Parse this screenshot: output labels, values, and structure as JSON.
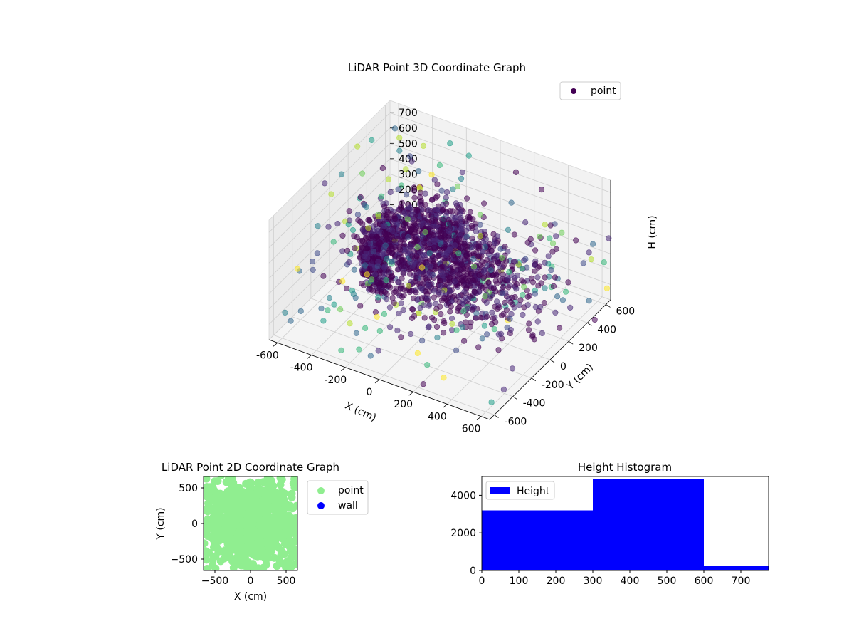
{
  "colors": {
    "point3d": "#440154",
    "point2d": "#90ee90",
    "wall": "#0000ff",
    "hist_bar": "#0000ff",
    "pane": "#f2f2f2",
    "grid": "#d0d0d0",
    "viridis": [
      "#440154",
      "#482878",
      "#3e4a89",
      "#31688e",
      "#26828e",
      "#1f9e89",
      "#35b779",
      "#6ece58",
      "#b5de2b",
      "#fde725"
    ]
  },
  "chart_data": [
    {
      "type": "scatter",
      "projection": "3d",
      "title": "LiDAR Point 3D Coordinate Graph",
      "xlabel": "X (cm)",
      "ylabel": "Y (cm)",
      "zlabel": "H (cm)",
      "xlim": [
        -650,
        650
      ],
      "ylim": [
        -650,
        650
      ],
      "zlim": [
        0,
        780
      ],
      "x_ticks": [
        "-600",
        "-400",
        "-200",
        "0",
        "200",
        "400",
        "600"
      ],
      "y_ticks": [
        "-600",
        "-400",
        "-200",
        "0",
        "200",
        "400",
        "600"
      ],
      "z_ticks": [
        "0",
        "100",
        "200",
        "300",
        "400",
        "500",
        "600",
        "700"
      ],
      "grid": true,
      "legend": "top-right",
      "colormap": "viridis",
      "series": [
        {
          "name": "point",
          "clusters": [
            {
              "shape": "arc",
              "center": [
                -150,
                200,
                200
              ],
              "radius": 330,
              "angle_range_deg": [
                90,
                250
              ],
              "h_range": [
                80,
                330
              ],
              "count": 700
            },
            {
              "shape": "blob",
              "center": [
                150,
                -100,
                430
              ],
              "spread": [
                220,
                180,
                100
              ],
              "count": 700
            },
            {
              "shape": "blob",
              "center": [
                -100,
                100,
                300
              ],
              "spread": [
                150,
                150,
                150
              ],
              "count": 300
            },
            {
              "shape": "scatter",
              "x_range": [
                -650,
                650
              ],
              "y_range": [
                -650,
                650
              ],
              "h_range": [
                0,
                780
              ],
              "count": 260
            }
          ]
        }
      ]
    },
    {
      "type": "scatter",
      "title": "LiDAR Point 2D Coordinate Graph",
      "xlabel": "X (cm)",
      "ylabel": "Y (cm)",
      "xlim": [
        -660,
        660
      ],
      "ylim": [
        -660,
        660
      ],
      "x_ticks": [
        "-500",
        "0",
        "500"
      ],
      "y_ticks": [
        "-500",
        "0",
        "500"
      ],
      "legend": "outside-right",
      "series": [
        {
          "name": "point",
          "distribution": "dense-center",
          "x_range": [
            -650,
            650
          ],
          "y_range": [
            -650,
            650
          ],
          "count": 900
        },
        {
          "name": "wall",
          "count": 0
        }
      ]
    },
    {
      "type": "bar",
      "title": "Height Histogram",
      "xlim": [
        0,
        775
      ],
      "ylim": [
        0,
        5000
      ],
      "x_ticks": [
        "0",
        "100",
        "200",
        "300",
        "400",
        "500",
        "600",
        "700"
      ],
      "y_ticks": [
        "0",
        "2000",
        "4000"
      ],
      "legend": "top-left",
      "series": [
        {
          "name": "Height",
          "bins": [
            [
              0,
              300
            ],
            [
              300,
              600
            ],
            [
              600,
              775
            ]
          ],
          "values": [
            3200,
            4850,
            250
          ]
        }
      ]
    }
  ]
}
